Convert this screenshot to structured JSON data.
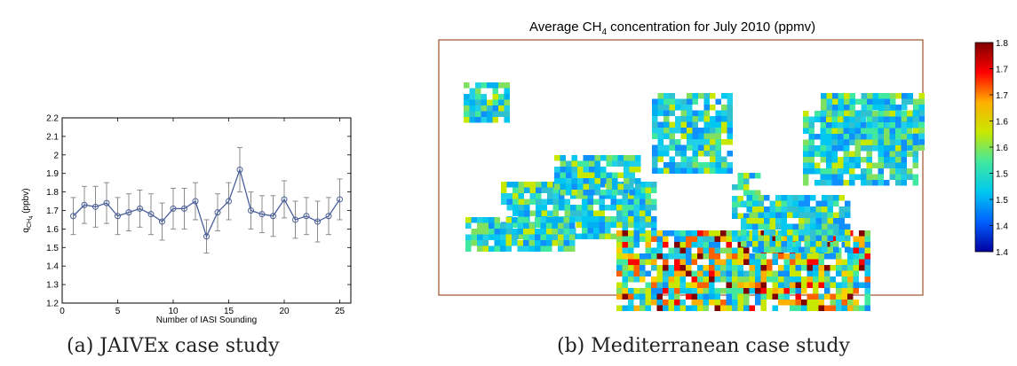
{
  "chart_data": [
    {
      "type": "line",
      "xlabel": "Number of IASI Sounding",
      "ylabel": "q",
      "ylabel_sub": "CH",
      "ylabel_subsub": "4",
      "ylabel_unit": "(ppbv)",
      "xlim": [
        0,
        26
      ],
      "ylim": [
        1.2,
        2.2
      ],
      "xticks": [
        0,
        5,
        10,
        15,
        20,
        25
      ],
      "yticks": [
        1.2,
        1.3,
        1.4,
        1.5,
        1.6,
        1.7,
        1.8,
        1.9,
        2.0,
        2.1,
        2.2
      ],
      "ytick_labels": [
        "1.2",
        "1.3",
        "1.4",
        "1.5",
        "1.6",
        "1.7",
        "1.8",
        "1.9",
        "2",
        "2.1",
        "2.2"
      ],
      "x": [
        1,
        2,
        3,
        4,
        5,
        6,
        7,
        8,
        9,
        10,
        11,
        12,
        13,
        14,
        15,
        16,
        17,
        18,
        19,
        20,
        21,
        22,
        23,
        24,
        25
      ],
      "y": [
        1.67,
        1.73,
        1.72,
        1.74,
        1.67,
        1.69,
        1.71,
        1.68,
        1.64,
        1.71,
        1.71,
        1.75,
        1.56,
        1.69,
        1.75,
        1.92,
        1.7,
        1.68,
        1.67,
        1.76,
        1.65,
        1.67,
        1.64,
        1.67,
        1.76
      ],
      "error": [
        0.1,
        0.1,
        0.11,
        0.11,
        0.1,
        0.1,
        0.1,
        0.11,
        0.1,
        0.11,
        0.11,
        0.1,
        0.09,
        0.1,
        0.1,
        0.12,
        0.1,
        0.1,
        0.11,
        0.1,
        0.1,
        0.1,
        0.11,
        0.1,
        0.11
      ],
      "line_color": "#4a5f9a",
      "errorbar_color": "#8c8c8c"
    },
    {
      "type": "heatmap",
      "title_prefix": "Average CH",
      "title_sub": "4",
      "title_suffix": " concentration for July 2010 (ppmv)",
      "colorbar_ticks": [
        "1.8",
        "1.7",
        "1.7",
        "1.6",
        "1.6",
        "1.5",
        "1.5",
        "1.4",
        "1.4"
      ],
      "colorbar_colors": [
        "#800000",
        "#ff0000",
        "#ffb000",
        "#c8e800",
        "#40e8a0",
        "#00c8f0",
        "#0060ff",
        "#0000a0"
      ],
      "frame_color": "#a0522d",
      "coast_color": "#2a3f8f"
    }
  ],
  "captions": {
    "a": "(a)  JAIVEx case study",
    "b": "(b)  Mediterranean case study"
  }
}
